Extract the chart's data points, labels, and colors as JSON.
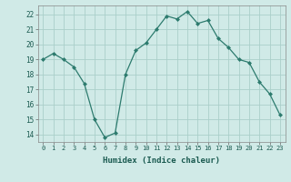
{
  "x": [
    0,
    1,
    2,
    3,
    4,
    5,
    6,
    7,
    8,
    9,
    10,
    11,
    12,
    13,
    14,
    15,
    16,
    17,
    18,
    19,
    20,
    21,
    22,
    23
  ],
  "y": [
    19.0,
    19.4,
    19.0,
    18.5,
    17.4,
    15.0,
    13.8,
    14.1,
    18.0,
    19.6,
    20.1,
    21.0,
    21.9,
    21.7,
    22.2,
    21.4,
    21.6,
    20.4,
    19.8,
    19.0,
    18.8,
    17.5,
    16.7,
    15.3
  ],
  "line_color": "#2d7b6e",
  "bg_color": "#d0eae7",
  "grid_color": "#aacfca",
  "xlabel": "Humidex (Indice chaleur)",
  "ylim": [
    13.5,
    22.6
  ],
  "xlim": [
    -0.5,
    23.5
  ],
  "yticks": [
    14,
    15,
    16,
    17,
    18,
    19,
    20,
    21,
    22
  ],
  "xtick_labels": [
    "0",
    "1",
    "2",
    "3",
    "4",
    "5",
    "6",
    "7",
    "8",
    "9",
    "10",
    "11",
    "12",
    "13",
    "14",
    "15",
    "16",
    "17",
    "18",
    "19",
    "20",
    "21",
    "22",
    "23"
  ]
}
